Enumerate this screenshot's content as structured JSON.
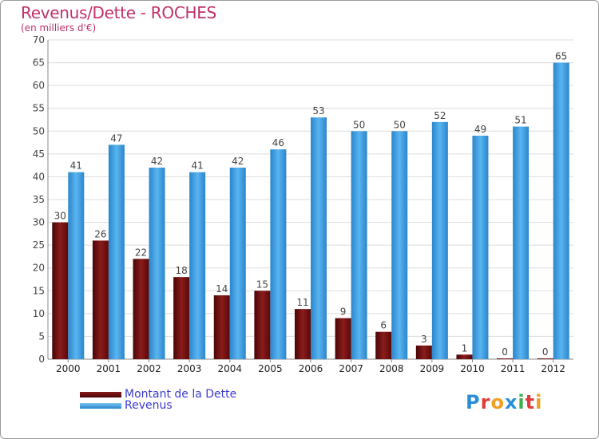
{
  "title": "Revenus/Dette - ROCHES",
  "subtitle": "(en milliers d'€)",
  "colors": {
    "dette": "#6b0a0a",
    "revenus": "#3a9de0",
    "title": "#c0306a",
    "legend_text": "#3a3ad0"
  },
  "chart_data": {
    "type": "bar",
    "title": "Revenus/Dette - ROCHES",
    "subtitle": "(en milliers d'€)",
    "categories": [
      "2000",
      "2001",
      "2002",
      "2003",
      "2004",
      "2005",
      "2006",
      "2007",
      "2008",
      "2009",
      "2010",
      "2011",
      "2012"
    ],
    "series": [
      {
        "name": "Montant de la Dette",
        "values": [
          30,
          26,
          22,
          18,
          14,
          15,
          11,
          9,
          6,
          3,
          1,
          0,
          0
        ]
      },
      {
        "name": "Revenus",
        "values": [
          41,
          47,
          42,
          41,
          42,
          46,
          53,
          50,
          50,
          52,
          49,
          51,
          65
        ]
      }
    ],
    "ylim": [
      0,
      70
    ],
    "yticks": [
      0,
      5,
      10,
      15,
      20,
      25,
      30,
      35,
      40,
      45,
      50,
      55,
      60,
      65,
      70
    ],
    "grid": true,
    "legend": "bottom-left"
  },
  "legend": {
    "items": [
      "Montant de la Dette",
      "Revenus"
    ]
  },
  "logo": {
    "letters": [
      "P",
      "r",
      "o",
      "x",
      "i",
      "t",
      "i"
    ],
    "colors": [
      "#2a8fd8",
      "#e23a3a",
      "#f0a020",
      "#2a8fd8",
      "#3ab04a",
      "#e23a3a",
      "#f0a020"
    ]
  }
}
